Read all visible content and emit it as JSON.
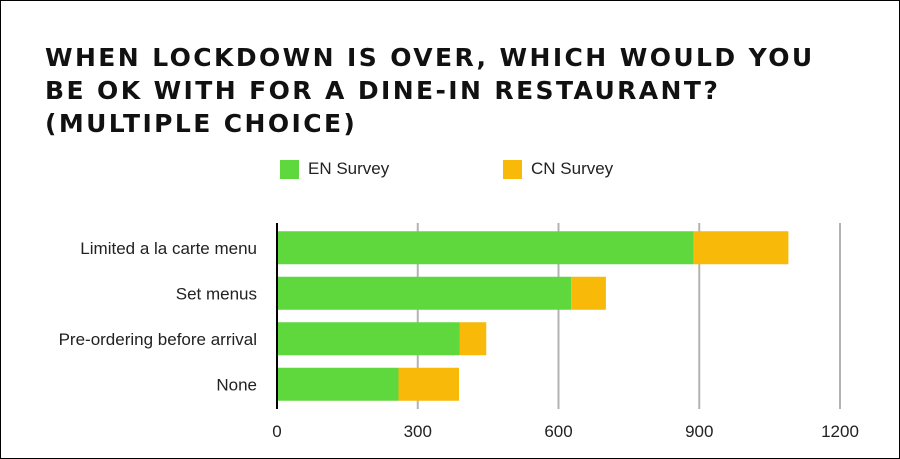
{
  "chart_data": {
    "type": "bar",
    "orientation": "horizontal",
    "stacked": true,
    "title": "WHEN LOCKDOWN IS OVER, WHICH WOULD YOU BE OK WITH FOR A DINE-IN RESTAURANT? (MULTIPLE CHOICE)",
    "xlabel": "",
    "ylabel": "",
    "categories": [
      "Limited a la carte menu",
      "Set menus",
      "Pre-ordering before arrival",
      "None"
    ],
    "series": [
      {
        "name": "EN Survey",
        "color": "#5ed83c",
        "values": [
          888,
          627,
          389,
          259
        ]
      },
      {
        "name": "CN Survey",
        "color": "#f8b908",
        "values": [
          202,
          74,
          57,
          129
        ]
      }
    ],
    "xlim": [
      0,
      1200
    ],
    "xticks": [
      0,
      300,
      600,
      900,
      1200
    ],
    "grid": true,
    "legend": "top"
  }
}
